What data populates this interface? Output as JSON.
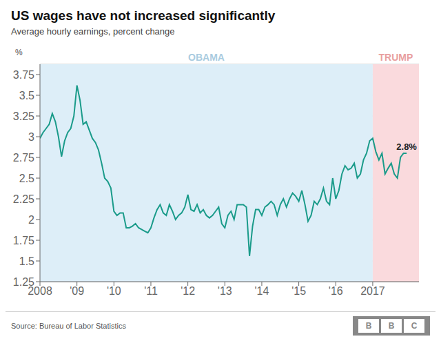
{
  "chart_data": {
    "type": "line",
    "title": "US wages have not increased significantly",
    "subtitle": "Average hourly earnings, percent change",
    "ylabel": "%",
    "source": "Source: Bureau of Labor Statistics",
    "logo": "BBC",
    "logo_color": "#888888",
    "color": "#1a9b8a",
    "grid": "y",
    "spans": [
      {
        "label": "OBAMA",
        "start": 2008.0,
        "end": 2017.0,
        "color": "#ddeef8",
        "text_color": "#aacce0"
      },
      {
        "label": "TRUMP",
        "start": 2017.0,
        "end": 2018.25,
        "color": "#fadadd",
        "text_color": "#e8a0a0"
      }
    ],
    "annotations": [
      {
        "text": "2.8%",
        "x": 2017.917,
        "y": 2.8
      }
    ],
    "xlim": [
      2008.0,
      2018.25
    ],
    "xticks": [
      2008,
      {
        "value": 2009,
        "label": "'09"
      },
      {
        "value": 2010,
        "label": "'10"
      },
      {
        "value": 2011,
        "label": "'11"
      },
      {
        "value": 2012,
        "label": "'12"
      },
      {
        "value": 2013,
        "label": "'13"
      },
      {
        "value": 2014,
        "label": "'14"
      },
      {
        "value": 2015,
        "label": "'15"
      },
      {
        "value": 2016,
        "label": "'16"
      },
      2017
    ],
    "ylim": [
      1.25,
      3.875
    ],
    "yticks": [
      1.25,
      1.5,
      1.75,
      2,
      2.25,
      2.5,
      2.75,
      3,
      3.25,
      3.5,
      3.75
    ],
    "x": [
      2008.0,
      2008.083,
      2008.167,
      2008.25,
      2008.333,
      2008.417,
      2008.5,
      2008.583,
      2008.667,
      2008.75,
      2008.833,
      2008.917,
      2009.0,
      2009.083,
      2009.167,
      2009.25,
      2009.333,
      2009.417,
      2009.5,
      2009.583,
      2009.667,
      2009.75,
      2009.833,
      2009.917,
      2010.0,
      2010.083,
      2010.167,
      2010.25,
      2010.333,
      2010.417,
      2010.5,
      2010.583,
      2010.667,
      2010.75,
      2010.833,
      2010.917,
      2011.0,
      2011.083,
      2011.167,
      2011.25,
      2011.333,
      2011.417,
      2011.5,
      2011.583,
      2011.667,
      2011.75,
      2011.833,
      2011.917,
      2012.0,
      2012.083,
      2012.167,
      2012.25,
      2012.333,
      2012.417,
      2012.5,
      2012.583,
      2012.667,
      2012.75,
      2012.833,
      2012.917,
      2013.0,
      2013.083,
      2013.167,
      2013.25,
      2013.333,
      2013.417,
      2013.5,
      2013.583,
      2013.667,
      2013.75,
      2013.833,
      2013.917,
      2014.0,
      2014.083,
      2014.167,
      2014.25,
      2014.333,
      2014.417,
      2014.5,
      2014.583,
      2014.667,
      2014.75,
      2014.833,
      2014.917,
      2015.0,
      2015.083,
      2015.167,
      2015.25,
      2015.333,
      2015.417,
      2015.5,
      2015.583,
      2015.667,
      2015.75,
      2015.833,
      2015.917,
      2016.0,
      2016.083,
      2016.167,
      2016.25,
      2016.333,
      2016.417,
      2016.5,
      2016.583,
      2016.667,
      2016.75,
      2016.833,
      2016.917,
      2017.0,
      2017.083,
      2017.167,
      2017.25,
      2017.333,
      2017.417,
      2017.5,
      2017.583,
      2017.667,
      2017.75,
      2017.833,
      2017.917
    ],
    "values": [
      2.98,
      3.05,
      3.1,
      3.15,
      3.28,
      3.18,
      3.0,
      2.76,
      2.95,
      3.05,
      3.1,
      3.25,
      3.62,
      3.44,
      3.15,
      3.18,
      3.08,
      2.98,
      2.93,
      2.84,
      2.68,
      2.5,
      2.46,
      2.38,
      2.1,
      2.05,
      2.08,
      2.08,
      1.9,
      1.9,
      1.92,
      1.95,
      1.9,
      1.88,
      1.86,
      1.84,
      1.9,
      2.02,
      2.12,
      2.18,
      2.08,
      2.05,
      2.18,
      2.1,
      2.0,
      2.05,
      2.08,
      2.15,
      2.3,
      2.12,
      2.1,
      2.18,
      2.08,
      2.12,
      2.05,
      2.02,
      2.05,
      2.1,
      2.15,
      1.95,
      1.9,
      2.05,
      2.1,
      2.0,
      2.18,
      2.18,
      2.18,
      2.15,
      1.56,
      1.92,
      2.12,
      2.12,
      2.05,
      2.15,
      2.18,
      2.22,
      2.18,
      2.05,
      2.18,
      2.25,
      2.15,
      2.25,
      2.32,
      2.28,
      2.22,
      2.35,
      2.18,
      1.98,
      2.05,
      2.22,
      2.18,
      2.25,
      2.38,
      2.22,
      2.18,
      2.5,
      2.25,
      2.35,
      2.55,
      2.65,
      2.6,
      2.62,
      2.68,
      2.5,
      2.55,
      2.72,
      2.8,
      2.95,
      2.98,
      2.82,
      2.72,
      2.8,
      2.55,
      2.62,
      2.68,
      2.55,
      2.5,
      2.75,
      2.8,
      2.8
    ]
  }
}
